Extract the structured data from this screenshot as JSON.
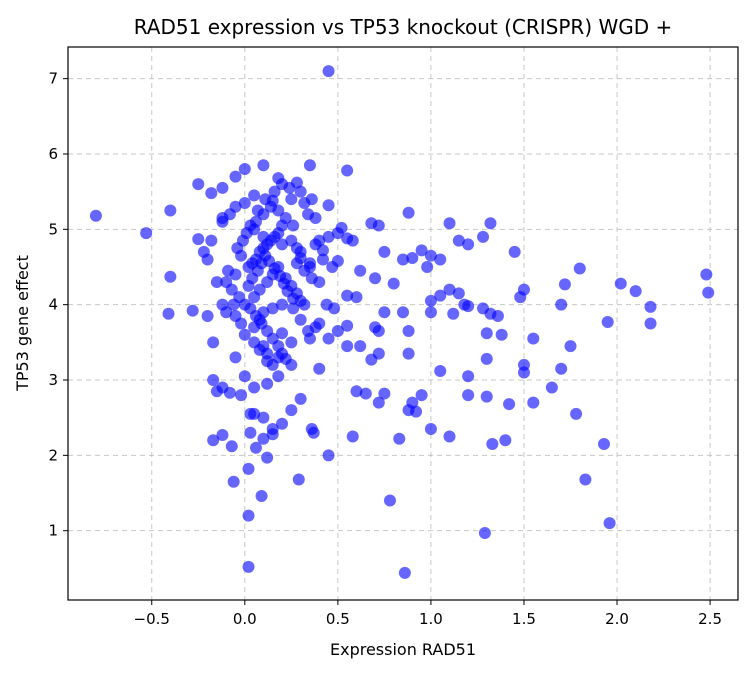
{
  "chart_data": {
    "type": "scatter",
    "title": "RAD51 expression vs TP53 knockout (CRISPR) WGD +",
    "xlabel": "Expression RAD51",
    "ylabel": "TP53 gene effect",
    "xlim": [
      -0.95,
      2.65
    ],
    "ylim": [
      0.08,
      7.42
    ],
    "xticks": [
      -0.5,
      0.0,
      0.5,
      1.0,
      1.5,
      2.0,
      2.5
    ],
    "xtick_labels": [
      "−0.5",
      "0.0",
      "0.5",
      "1.0",
      "1.5",
      "2.0",
      "2.5"
    ],
    "yticks": [
      1,
      2,
      3,
      4,
      5,
      6,
      7
    ],
    "ytick_labels": [
      "1",
      "2",
      "3",
      "4",
      "5",
      "6",
      "7"
    ],
    "grid": true,
    "marker_color": "#0000ff",
    "marker_alpha": 0.6,
    "points": [
      [
        0.45,
        7.1
      ],
      [
        -0.8,
        5.18
      ],
      [
        -0.4,
        5.25
      ],
      [
        -0.53,
        4.95
      ],
      [
        -0.4,
        4.37
      ],
      [
        -0.41,
        3.88
      ],
      [
        -0.25,
        5.6
      ],
      [
        -0.18,
        5.48
      ],
      [
        -0.12,
        5.55
      ],
      [
        -0.05,
        5.7
      ],
      [
        0.0,
        5.8
      ],
      [
        0.1,
        5.85
      ],
      [
        0.18,
        5.68
      ],
      [
        0.28,
        5.62
      ],
      [
        0.35,
        5.85
      ],
      [
        0.55,
        5.78
      ],
      [
        0.45,
        5.32
      ],
      [
        0.38,
        5.15
      ],
      [
        0.52,
        5.02
      ],
      [
        0.58,
        4.85
      ],
      [
        0.68,
        5.08
      ],
      [
        0.72,
        5.05
      ],
      [
        0.88,
        5.22
      ],
      [
        0.75,
        4.7
      ],
      [
        0.62,
        4.45
      ],
      [
        0.55,
        4.12
      ],
      [
        0.6,
        4.1
      ],
      [
        0.7,
        4.35
      ],
      [
        0.8,
        4.28
      ],
      [
        0.85,
        4.6
      ],
      [
        0.9,
        4.62
      ],
      [
        0.95,
        4.72
      ],
      [
        1.0,
        4.65
      ],
      [
        1.05,
        4.6
      ],
      [
        0.98,
        4.5
      ],
      [
        1.1,
        5.08
      ],
      [
        1.15,
        4.85
      ],
      [
        1.2,
        4.8
      ],
      [
        1.28,
        4.9
      ],
      [
        1.32,
        5.08
      ],
      [
        1.45,
        4.7
      ],
      [
        1.0,
        4.05
      ],
      [
        1.05,
        4.12
      ],
      [
        1.1,
        4.2
      ],
      [
        1.15,
        4.15
      ],
      [
        1.18,
        4.0
      ],
      [
        1.2,
        3.98
      ],
      [
        1.28,
        3.95
      ],
      [
        1.32,
        3.88
      ],
      [
        1.36,
        3.85
      ],
      [
        1.38,
        3.6
      ],
      [
        1.3,
        3.62
      ],
      [
        1.0,
        3.9
      ],
      [
        1.12,
        3.88
      ],
      [
        1.5,
        4.2
      ],
      [
        1.48,
        4.1
      ],
      [
        1.55,
        3.55
      ],
      [
        1.7,
        4.0
      ],
      [
        1.72,
        4.27
      ],
      [
        1.8,
        4.48
      ],
      [
        2.02,
        4.28
      ],
      [
        2.1,
        4.18
      ],
      [
        2.18,
        3.97
      ],
      [
        2.18,
        3.75
      ],
      [
        2.48,
        4.4
      ],
      [
        2.49,
        4.16
      ],
      [
        1.95,
        3.77
      ],
      [
        1.75,
        3.45
      ],
      [
        1.7,
        3.15
      ],
      [
        1.65,
        2.9
      ],
      [
        1.5,
        3.2
      ],
      [
        1.5,
        3.1
      ],
      [
        1.55,
        2.7
      ],
      [
        1.42,
        2.68
      ],
      [
        1.3,
        2.78
      ],
      [
        1.2,
        3.05
      ],
      [
        1.2,
        2.8
      ],
      [
        1.05,
        3.12
      ],
      [
        1.1,
        2.25
      ],
      [
        1.0,
        2.35
      ],
      [
        1.33,
        2.15
      ],
      [
        1.4,
        2.2
      ],
      [
        1.3,
        3.28
      ],
      [
        1.78,
        2.55
      ],
      [
        1.93,
        2.15
      ],
      [
        1.83,
        1.68
      ],
      [
        1.96,
        1.1
      ],
      [
        1.29,
        0.97
      ],
      [
        0.86,
        0.44
      ],
      [
        0.78,
        1.4
      ],
      [
        0.83,
        2.22
      ],
      [
        0.9,
        2.7
      ],
      [
        0.88,
        2.6
      ],
      [
        0.92,
        2.58
      ],
      [
        0.95,
        2.8
      ],
      [
        0.88,
        3.35
      ],
      [
        0.88,
        3.65
      ],
      [
        0.85,
        3.9
      ],
      [
        0.75,
        3.9
      ],
      [
        0.72,
        3.35
      ],
      [
        0.72,
        2.7
      ],
      [
        0.75,
        2.82
      ],
      [
        0.6,
        2.85
      ],
      [
        0.65,
        2.82
      ],
      [
        0.58,
        2.25
      ],
      [
        0.68,
        3.27
      ],
      [
        0.7,
        3.7
      ],
      [
        0.72,
        3.65
      ],
      [
        0.62,
        3.45
      ],
      [
        0.55,
        3.45
      ],
      [
        0.55,
        3.72
      ],
      [
        0.5,
        3.65
      ],
      [
        0.45,
        2.0
      ],
      [
        0.37,
        2.3
      ],
      [
        0.36,
        2.35
      ],
      [
        0.29,
        1.68
      ],
      [
        0.4,
        3.15
      ],
      [
        0.3,
        2.75
      ],
      [
        0.25,
        2.6
      ],
      [
        0.02,
        0.52
      ],
      [
        0.02,
        1.2
      ],
      [
        0.09,
        1.46
      ],
      [
        -0.06,
        1.65
      ],
      [
        0.02,
        1.82
      ],
      [
        0.12,
        1.97
      ],
      [
        0.06,
        2.1
      ],
      [
        -0.07,
        2.12
      ],
      [
        -0.17,
        2.2
      ],
      [
        -0.12,
        2.27
      ],
      [
        0.03,
        2.3
      ],
      [
        0.1,
        2.22
      ],
      [
        0.15,
        2.28
      ],
      [
        0.15,
        2.35
      ],
      [
        0.2,
        2.42
      ],
      [
        0.1,
        2.5
      ],
      [
        0.03,
        2.55
      ],
      [
        0.05,
        2.9
      ],
      [
        0.0,
        3.05
      ],
      [
        -0.05,
        3.3
      ],
      [
        0.12,
        3.25
      ],
      [
        0.2,
        3.35
      ],
      [
        0.25,
        3.5
      ],
      [
        0.35,
        3.55
      ],
      [
        0.3,
        3.8
      ],
      [
        0.45,
        3.55
      ],
      [
        0.4,
        3.75
      ],
      [
        0.48,
        3.95
      ],
      [
        0.44,
        4.0
      ],
      [
        0.4,
        4.3
      ],
      [
        0.47,
        4.5
      ],
      [
        0.5,
        4.58
      ],
      [
        0.42,
        4.6
      ],
      [
        0.35,
        4.5
      ],
      [
        0.3,
        4.62
      ],
      [
        0.35,
        4.55
      ],
      [
        0.32,
        4.0
      ],
      [
        0.26,
        3.95
      ],
      [
        0.2,
        3.62
      ],
      [
        0.15,
        3.2
      ],
      [
        0.08,
        3.4
      ],
      [
        -0.17,
        3.5
      ],
      [
        -0.15,
        2.85
      ],
      [
        -0.17,
        3.0
      ],
      [
        -0.12,
        2.9
      ],
      [
        -0.08,
        2.83
      ],
      [
        -0.02,
        2.8
      ],
      [
        0.05,
        2.55
      ],
      [
        -0.28,
        3.92
      ],
      [
        -0.2,
        3.85
      ],
      [
        -0.15,
        4.3
      ],
      [
        -0.2,
        4.6
      ],
      [
        -0.25,
        4.87
      ],
      [
        -0.18,
        4.85
      ],
      [
        -0.22,
        4.7
      ],
      [
        -0.12,
        5.1
      ],
      [
        -0.12,
        5.15
      ],
      [
        -0.08,
        5.2
      ],
      [
        -0.05,
        5.3
      ],
      [
        0.05,
        5.45
      ],
      [
        0.15,
        5.38
      ],
      [
        0.25,
        5.4
      ],
      [
        0.32,
        5.35
      ],
      [
        0.36,
        5.4
      ],
      [
        0.0,
        5.35
      ],
      [
        0.05,
        5.0
      ],
      [
        0.1,
        4.9
      ],
      [
        0.2,
        4.8
      ],
      [
        0.25,
        4.85
      ],
      [
        0.28,
        4.75
      ],
      [
        0.3,
        4.7
      ],
      [
        0.38,
        4.8
      ],
      [
        0.4,
        4.85
      ],
      [
        0.45,
        4.9
      ],
      [
        0.5,
        4.95
      ],
      [
        0.55,
        4.88
      ],
      [
        0.42,
        4.72
      ],
      [
        -0.02,
        4.65
      ],
      [
        -0.05,
        4.4
      ],
      [
        -0.1,
        4.3
      ],
      [
        -0.07,
        4.2
      ],
      [
        -0.12,
        4.0
      ],
      [
        -0.1,
        3.9
      ],
      [
        -0.05,
        3.85
      ],
      [
        -0.02,
        3.75
      ],
      [
        0.0,
        3.6
      ],
      [
        0.05,
        3.5
      ],
      [
        0.1,
        3.45
      ],
      [
        0.12,
        3.35
      ],
      [
        0.18,
        3.3
      ],
      [
        0.22,
        3.28
      ],
      [
        0.25,
        3.2
      ],
      [
        0.18,
        3.05
      ],
      [
        0.12,
        2.95
      ],
      [
        0.05,
        4.1
      ],
      [
        0.08,
        4.2
      ],
      [
        0.12,
        4.3
      ],
      [
        0.15,
        4.4
      ],
      [
        0.18,
        4.5
      ],
      [
        0.22,
        4.35
      ],
      [
        0.25,
        4.25
      ],
      [
        0.28,
        4.15
      ],
      [
        0.3,
        4.05
      ],
      [
        0.2,
        4.0
      ],
      [
        0.15,
        3.95
      ],
      [
        0.1,
        3.9
      ],
      [
        0.08,
        3.8
      ],
      [
        0.05,
        3.7
      ],
      [
        0.02,
        4.5
      ],
      [
        0.04,
        4.55
      ],
      [
        0.06,
        4.6
      ],
      [
        0.08,
        4.7
      ],
      [
        0.1,
        4.75
      ],
      [
        0.12,
        4.8
      ],
      [
        0.14,
        4.85
      ],
      [
        0.16,
        4.9
      ],
      [
        0.18,
        4.95
      ],
      [
        0.2,
        5.05
      ],
      [
        0.06,
        5.1
      ],
      [
        0.1,
        5.2
      ],
      [
        0.14,
        5.3
      ],
      [
        0.18,
        5.25
      ],
      [
        0.22,
        5.15
      ],
      [
        0.26,
        5.05
      ],
      [
        0.0,
        4.0
      ],
      [
        0.02,
        4.25
      ],
      [
        0.04,
        4.35
      ],
      [
        0.07,
        4.45
      ],
      [
        0.09,
        4.55
      ],
      [
        0.11,
        4.65
      ],
      [
        0.13,
        4.58
      ],
      [
        0.16,
        4.48
      ],
      [
        0.19,
        4.38
      ],
      [
        0.21,
        4.28
      ],
      [
        0.23,
        4.18
      ],
      [
        0.26,
        4.08
      ],
      [
        0.03,
        3.95
      ],
      [
        0.06,
        3.85
      ],
      [
        0.09,
        3.75
      ],
      [
        0.12,
        3.65
      ],
      [
        0.15,
        3.55
      ],
      [
        0.18,
        3.45
      ],
      [
        -0.03,
        4.1
      ],
      [
        -0.06,
        4.0
      ],
      [
        -0.09,
        4.45
      ],
      [
        -0.04,
        4.75
      ],
      [
        -0.01,
        4.85
      ],
      [
        0.01,
        4.95
      ],
      [
        0.03,
        5.05
      ],
      [
        0.07,
        5.25
      ],
      [
        0.11,
        5.4
      ],
      [
        0.16,
        5.5
      ],
      [
        0.2,
        5.6
      ],
      [
        0.24,
        5.55
      ],
      [
        0.3,
        5.5
      ],
      [
        0.34,
        5.2
      ],
      [
        0.28,
        4.55
      ],
      [
        0.32,
        4.45
      ],
      [
        0.36,
        4.35
      ],
      [
        0.34,
        3.65
      ],
      [
        0.38,
        3.7
      ]
    ]
  }
}
